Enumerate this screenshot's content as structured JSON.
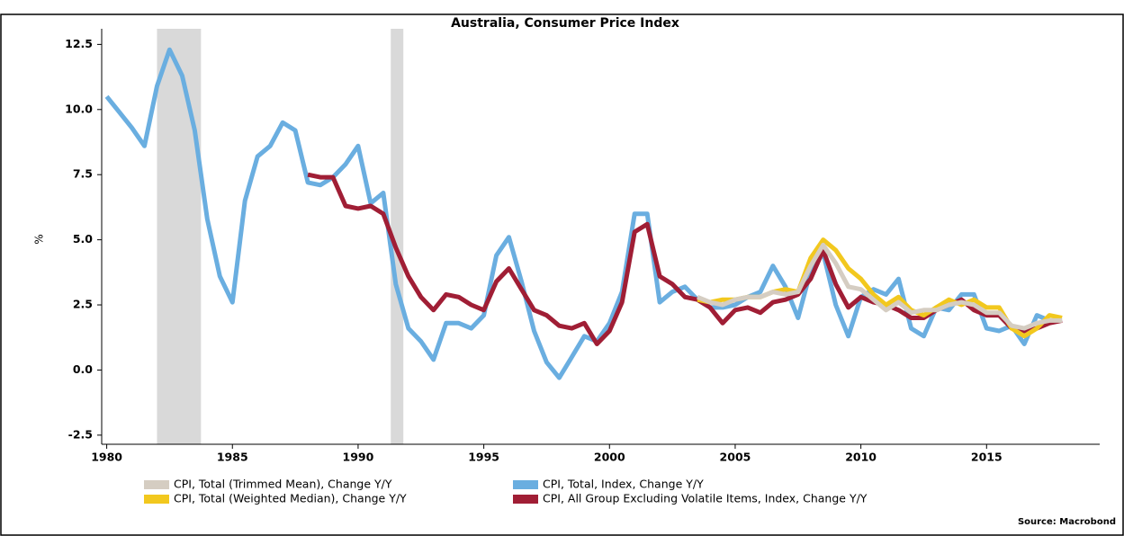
{
  "chart_data": {
    "type": "line",
    "title": "Australia, Consumer Price Index",
    "y_label": "%",
    "source": "Source: Macrobond",
    "xlim": [
      1979.8,
      2019.5
    ],
    "ylim": [
      -2.85,
      13.1
    ],
    "xticks": [
      1980,
      1985,
      1990,
      1995,
      2000,
      2005,
      2010,
      2015
    ],
    "yticks": [
      {
        "value": 12.5,
        "label": "12.5"
      },
      {
        "value": 10,
        "label": "10.0"
      },
      7.5,
      {
        "value": 5,
        "label": "5.0"
      },
      2.5,
      {
        "value": 0,
        "label": "0.0"
      },
      -2.5
    ],
    "shaded_periods": [
      [
        1982.0,
        1983.75
      ],
      [
        1991.3,
        1991.8
      ]
    ],
    "x": [
      1980,
      1980.5,
      1981,
      1981.5,
      1982,
      1982.5,
      1983,
      1983.5,
      1984,
      1984.5,
      1985,
      1985.5,
      1986,
      1986.5,
      1987,
      1987.5,
      1988,
      1988.5,
      1989,
      1989.5,
      1990,
      1990.5,
      1991,
      1991.5,
      1992,
      1992.5,
      1993,
      1993.5,
      1994,
      1994.5,
      1995,
      1995.5,
      1996,
      1996.5,
      1997,
      1997.5,
      1998,
      1998.5,
      1999,
      1999.5,
      2000,
      2000.5,
      2001,
      2001.5,
      2002,
      2002.5,
      2003,
      2003.5,
      2004,
      2004.5,
      2005,
      2005.5,
      2006,
      2006.5,
      2007,
      2007.5,
      2008,
      2008.5,
      2009,
      2009.5,
      2010,
      2010.5,
      2011,
      2011.5,
      2012,
      2012.5,
      2013,
      2013.5,
      2014,
      2014.5,
      2015,
      2015.5,
      2016,
      2016.5,
      2017,
      2017.5,
      2018
    ],
    "series": [
      {
        "name": "CPI, Total (Trimmed Mean), Change Y/Y",
        "color": "#d5cdc2",
        "values": [
          null,
          null,
          null,
          null,
          null,
          null,
          null,
          null,
          null,
          null,
          null,
          null,
          null,
          null,
          null,
          null,
          null,
          null,
          null,
          null,
          null,
          null,
          null,
          null,
          null,
          null,
          null,
          null,
          null,
          null,
          null,
          null,
          null,
          null,
          null,
          null,
          null,
          null,
          null,
          null,
          null,
          null,
          null,
          null,
          null,
          null,
          null,
          2.8,
          2.6,
          2.5,
          2.7,
          2.8,
          2.8,
          3.0,
          2.9,
          3.0,
          4.0,
          4.8,
          4.1,
          3.2,
          3.1,
          2.7,
          2.3,
          2.6,
          2.2,
          2.3,
          2.3,
          2.5,
          2.6,
          2.5,
          2.2,
          2.2,
          1.7,
          1.6,
          1.8,
          1.9,
          1.9
        ]
      },
      {
        "name": "CPI, Total (Weighted Median), Change Y/Y",
        "color": "#f2c81e",
        "values": [
          null,
          null,
          null,
          null,
          null,
          null,
          null,
          null,
          null,
          null,
          null,
          null,
          null,
          null,
          null,
          null,
          null,
          null,
          null,
          null,
          null,
          null,
          null,
          null,
          null,
          null,
          null,
          null,
          null,
          null,
          null,
          null,
          null,
          null,
          null,
          null,
          null,
          null,
          null,
          null,
          null,
          null,
          null,
          null,
          null,
          null,
          null,
          2.7,
          2.6,
          2.7,
          2.7,
          2.8,
          2.8,
          3.0,
          3.1,
          3.0,
          4.3,
          5.0,
          4.6,
          3.9,
          3.5,
          2.9,
          2.5,
          2.8,
          2.3,
          2.1,
          2.4,
          2.7,
          2.5,
          2.7,
          2.4,
          2.4,
          1.6,
          1.3,
          1.6,
          2.1,
          2.0
        ]
      },
      {
        "name": "CPI, Total, Index, Change Y/Y",
        "color": "#6aaee0",
        "values": [
          10.5,
          9.9,
          9.3,
          8.6,
          10.9,
          12.3,
          11.3,
          9.2,
          5.8,
          3.6,
          2.6,
          6.5,
          8.2,
          8.6,
          9.5,
          9.2,
          7.2,
          7.1,
          7.4,
          7.9,
          8.6,
          6.4,
          6.8,
          3.3,
          1.6,
          1.1,
          0.4,
          1.8,
          1.8,
          1.6,
          2.1,
          4.4,
          5.1,
          3.4,
          1.5,
          0.3,
          -0.3,
          0.5,
          1.3,
          1.1,
          1.8,
          3.0,
          6.0,
          6.0,
          2.6,
          3.0,
          3.2,
          2.7,
          2.4,
          2.4,
          2.5,
          2.8,
          3.0,
          4.0,
          3.2,
          2.0,
          3.8,
          4.5,
          2.5,
          1.3,
          2.8,
          3.1,
          2.9,
          3.5,
          1.6,
          1.3,
          2.4,
          2.3,
          2.9,
          2.9,
          1.6,
          1.5,
          1.7,
          1.0,
          2.1,
          1.9,
          1.9
        ]
      },
      {
        "name": "CPI, All Group Excluding Volatile Items, Index, Change Y/Y",
        "color": "#a01e35",
        "values": [
          null,
          null,
          null,
          null,
          null,
          null,
          null,
          null,
          null,
          null,
          null,
          null,
          null,
          null,
          null,
          null,
          7.5,
          7.4,
          7.4,
          6.3,
          6.2,
          6.3,
          6.0,
          4.7,
          3.6,
          2.8,
          2.3,
          2.9,
          2.8,
          2.5,
          2.3,
          3.4,
          3.9,
          3.1,
          2.3,
          2.1,
          1.7,
          1.6,
          1.8,
          1.0,
          1.5,
          2.6,
          5.3,
          5.6,
          3.6,
          3.3,
          2.8,
          2.7,
          2.4,
          1.8,
          2.3,
          2.4,
          2.2,
          2.6,
          2.7,
          2.9,
          3.5,
          4.6,
          3.3,
          2.4,
          2.8,
          2.6,
          2.5,
          2.3,
          2.0,
          2.0,
          2.3,
          2.5,
          2.7,
          2.3,
          2.1,
          2.1,
          1.6,
          1.5,
          1.6,
          1.8,
          1.9
        ]
      }
    ]
  }
}
